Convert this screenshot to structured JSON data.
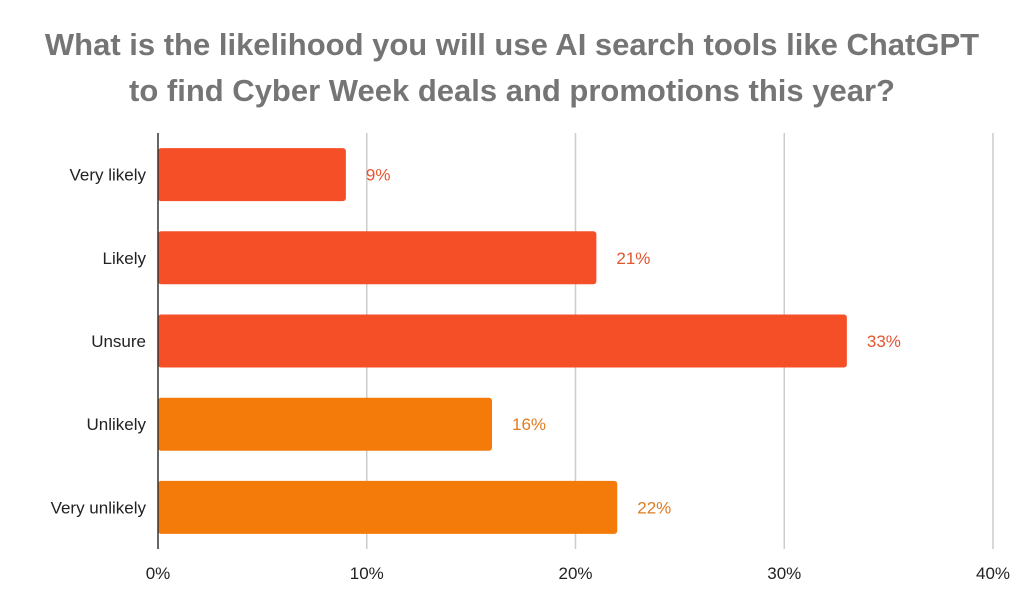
{
  "chart_data": {
    "type": "bar",
    "orientation": "horizontal",
    "title": "What is the likelihood you will use AI search tools like ChatGPT to find Cyber Week deals and promotions this year?",
    "title_lines": [
      "What is the likelihood you will use AI search tools like ChatGPT",
      "to find Cyber Week deals and promotions this year?"
    ],
    "categories": [
      "Very likely",
      "Likely",
      "Unsure",
      "Unlikely",
      "Very unlikely"
    ],
    "values": [
      9,
      21,
      33,
      16,
      22
    ],
    "data_labels": [
      "9%",
      "21%",
      "33%",
      "16%",
      "22%"
    ],
    "bar_colors": [
      "#f44f27",
      "#f44f27",
      "#f44f27",
      "#f47a0a",
      "#f47a0a"
    ],
    "label_colors": [
      "#e2552f",
      "#e2552f",
      "#e2552f",
      "#e07c1f",
      "#e07c1f"
    ],
    "xlim": [
      0,
      40
    ],
    "xticks": [
      0,
      10,
      20,
      30,
      40
    ],
    "xtick_labels": [
      "0%",
      "10%",
      "20%",
      "30%",
      "40%"
    ],
    "xlabel": "",
    "ylabel": "",
    "grid": true,
    "grid_color": "#cccccc",
    "title_color": "#757575",
    "legend": "none"
  }
}
